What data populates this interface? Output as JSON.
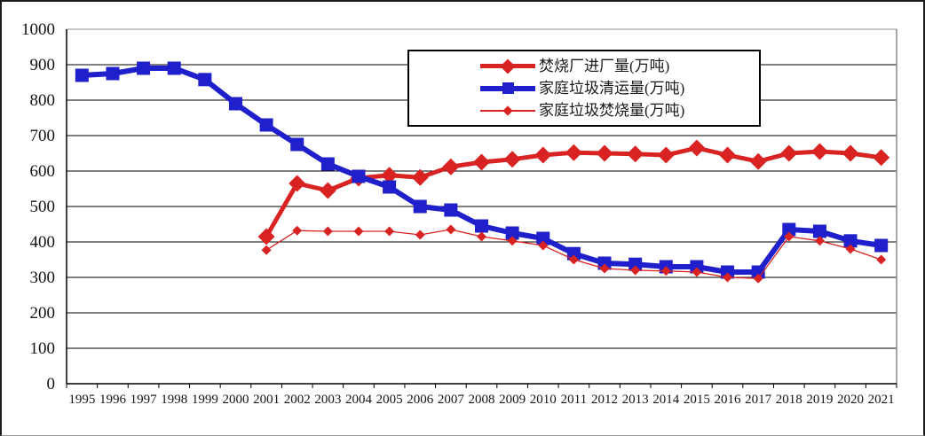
{
  "chart": {
    "colors": {
      "red": "#d92323",
      "blue": "#1f1fcc",
      "grid": "#000000",
      "axis": "#000000",
      "plot_border": "#8c8c8c",
      "background": "#ffffff",
      "label_text": "#141414",
      "legend_text": "#1a1a1a",
      "legend_border": "#000000"
    },
    "y_axis": {
      "min": 0,
      "max": 1000,
      "step": 100
    },
    "legend": {
      "items": [
        {
          "label": "焚烧厂进厂量(万吨)",
          "marker": "diamond",
          "line": "thick",
          "color": "#d92323"
        },
        {
          "label": "家庭垃圾清运量(万吨)",
          "marker": "square",
          "line": "thick",
          "color": "#1f1fcc"
        },
        {
          "label": "家庭垃圾焚烧量(万吨)",
          "marker": "diamond-small",
          "line": "thin",
          "color": "#d92323"
        }
      ]
    }
  },
  "chart_data": {
    "type": "line",
    "title": "",
    "xlabel": "",
    "ylabel": "",
    "ylim": [
      0,
      1000
    ],
    "y_tick_step": 100,
    "grid": true,
    "legend_position": "top-center-inside",
    "x": [
      "1995",
      "1996",
      "1997",
      "1998",
      "1999",
      "2000",
      "2001",
      "2002",
      "2003",
      "2004",
      "2005",
      "2006",
      "2007",
      "2008",
      "2009",
      "2010",
      "2011",
      "2012",
      "2013",
      "2014",
      "2015",
      "2016",
      "2017",
      "2018",
      "2019",
      "2020",
      "2021"
    ],
    "series": [
      {
        "name": "焚烧厂进厂量(万吨)",
        "color": "#d92323",
        "marker": "diamond",
        "marker_size": 9.5,
        "line_width": 5,
        "values": [
          null,
          null,
          null,
          null,
          null,
          null,
          415,
          565,
          545,
          580,
          588,
          582,
          612,
          625,
          633,
          645,
          652,
          650,
          648,
          645,
          665,
          645,
          627,
          650,
          655,
          650,
          638
        ]
      },
      {
        "name": "家庭垃圾清运量(万吨)",
        "color": "#1f1fcc",
        "marker": "square",
        "marker_size": 7.5,
        "line_width": 6,
        "values": [
          870,
          875,
          890,
          890,
          858,
          790,
          730,
          675,
          620,
          585,
          555,
          500,
          490,
          445,
          425,
          410,
          367,
          340,
          337,
          330,
          330,
          315,
          315,
          435,
          430,
          403,
          390
        ]
      },
      {
        "name": "家庭垃圾焚烧量(万吨)",
        "color": "#d92323",
        "marker": "diamond-small",
        "marker_size": 5.5,
        "line_width": 1.3,
        "values": [
          null,
          null,
          null,
          null,
          null,
          null,
          377,
          432,
          430,
          430,
          430,
          420,
          435,
          415,
          403,
          390,
          350,
          325,
          320,
          318,
          315,
          300,
          297,
          415,
          403,
          380,
          350
        ]
      }
    ]
  }
}
